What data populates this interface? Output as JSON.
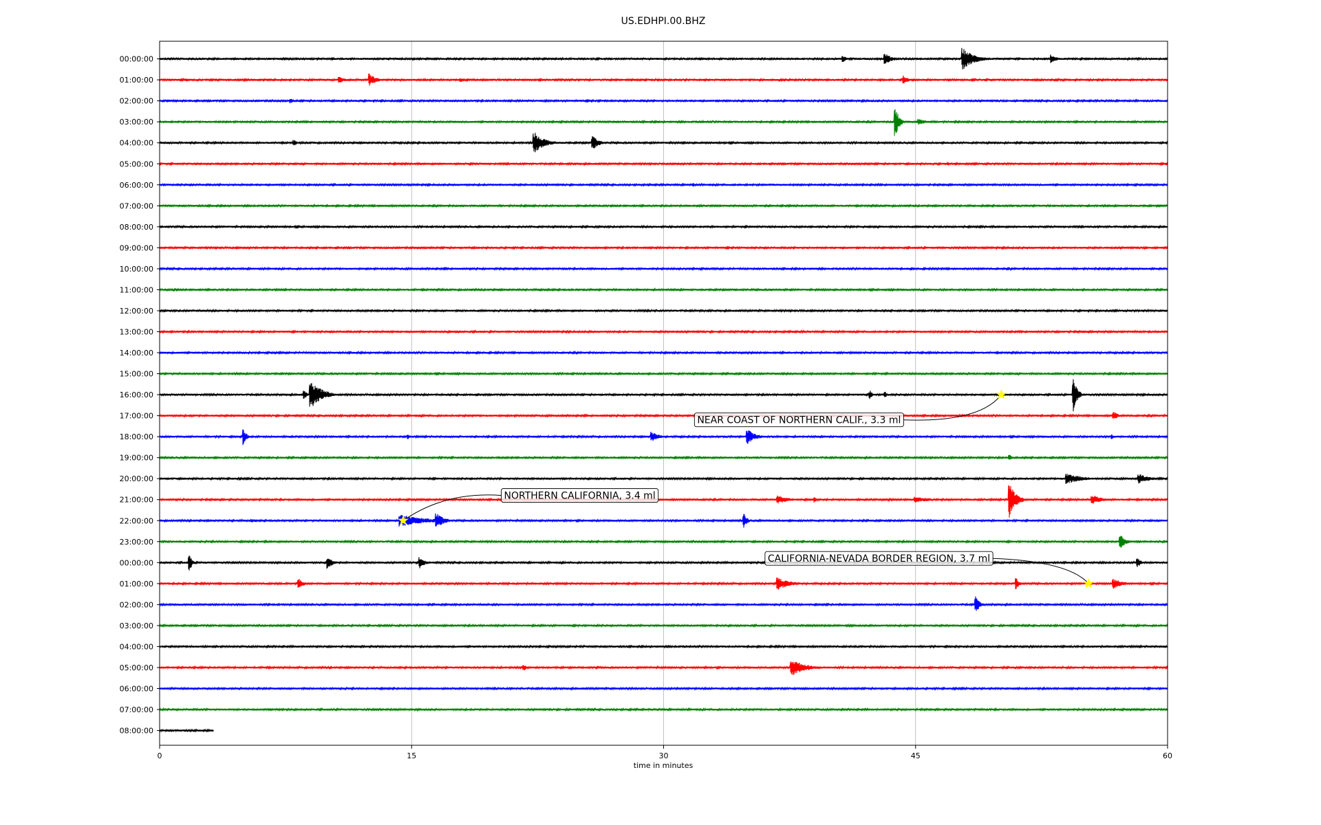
{
  "chart_data": {
    "type": "line",
    "title": "US.EDHPI.00.BHZ",
    "xlabel": "time in minutes",
    "ylabel": "",
    "xlim": [
      0,
      60
    ],
    "x_ticks": [
      "0",
      "15",
      "30",
      "45",
      "60"
    ],
    "x_tick_values": [
      0,
      15,
      30,
      45,
      60
    ],
    "grid": "vertical",
    "row_labels": [
      "00:00:00",
      "01:00:00",
      "02:00:00",
      "03:00:00",
      "04:00:00",
      "05:00:00",
      "06:00:00",
      "07:00:00",
      "08:00:00",
      "09:00:00",
      "10:00:00",
      "11:00:00",
      "12:00:00",
      "13:00:00",
      "14:00:00",
      "15:00:00",
      "16:00:00",
      "17:00:00",
      "18:00:00",
      "19:00:00",
      "20:00:00",
      "21:00:00",
      "22:00:00",
      "23:00:00",
      "00:00:00",
      "01:00:00",
      "02:00:00",
      "03:00:00",
      "04:00:00",
      "05:00:00",
      "06:00:00",
      "07:00:00",
      "08:00:00"
    ],
    "color_cycle": [
      "#000000",
      "#ff0000",
      "#0000ff",
      "#008000"
    ],
    "last_row_end_minutes": 3.2,
    "bursts": [
      {
        "row": 0,
        "minute": 40.7,
        "amp": 0.6,
        "dur": 0.5
      },
      {
        "row": 0,
        "minute": 43.2,
        "amp": 0.9,
        "dur": 0.9
      },
      {
        "row": 0,
        "minute": 47.8,
        "amp": 1.8,
        "dur": 1.5
      },
      {
        "row": 0,
        "minute": 53.1,
        "amp": 0.7,
        "dur": 0.7
      },
      {
        "row": 1,
        "minute": 1.6,
        "amp": 0.3,
        "dur": 0.3
      },
      {
        "row": 1,
        "minute": 10.7,
        "amp": 0.5,
        "dur": 1.0
      },
      {
        "row": 1,
        "minute": 12.5,
        "amp": 1.1,
        "dur": 0.8
      },
      {
        "row": 1,
        "minute": 17.9,
        "amp": 0.4,
        "dur": 0.6
      },
      {
        "row": 1,
        "minute": 44.3,
        "amp": 0.7,
        "dur": 0.6
      },
      {
        "row": 2,
        "minute": 7.8,
        "amp": 0.4,
        "dur": 0.4
      },
      {
        "row": 3,
        "minute": 43.8,
        "amp": 2.5,
        "dur": 0.5
      },
      {
        "row": 3,
        "minute": 45.2,
        "amp": 0.5,
        "dur": 1.0
      },
      {
        "row": 4,
        "minute": 8.0,
        "amp": 0.5,
        "dur": 0.5
      },
      {
        "row": 4,
        "minute": 22.3,
        "amp": 1.8,
        "dur": 1.3
      },
      {
        "row": 4,
        "minute": 25.8,
        "amp": 1.1,
        "dur": 0.8
      },
      {
        "row": 5,
        "minute": 47.0,
        "amp": 0.3,
        "dur": 0.2
      },
      {
        "row": 6,
        "minute": 31.8,
        "amp": 0.3,
        "dur": 0.3
      },
      {
        "row": 16,
        "minute": 8.6,
        "amp": 0.8,
        "dur": 0.4
      },
      {
        "row": 16,
        "minute": 9.0,
        "amp": 2.4,
        "dur": 1.4
      },
      {
        "row": 16,
        "minute": 42.3,
        "amp": 0.7,
        "dur": 0.3
      },
      {
        "row": 16,
        "minute": 43.2,
        "amp": 0.5,
        "dur": 0.3
      },
      {
        "row": 16,
        "minute": 54.4,
        "amp": 2.7,
        "dur": 0.5
      },
      {
        "row": 17,
        "minute": 56.8,
        "amp": 0.7,
        "dur": 0.6
      },
      {
        "row": 18,
        "minute": 5.0,
        "amp": 1.4,
        "dur": 0.4
      },
      {
        "row": 18,
        "minute": 14.8,
        "amp": 0.4,
        "dur": 0.3
      },
      {
        "row": 18,
        "minute": 29.3,
        "amp": 0.8,
        "dur": 1.0
      },
      {
        "row": 18,
        "minute": 35.0,
        "amp": 1.3,
        "dur": 1.0
      },
      {
        "row": 18,
        "minute": 56.7,
        "amp": 0.4,
        "dur": 0.3
      },
      {
        "row": 19,
        "minute": 50.6,
        "amp": 0.5,
        "dur": 0.4
      },
      {
        "row": 20,
        "minute": 54.0,
        "amp": 0.9,
        "dur": 2.0
      },
      {
        "row": 20,
        "minute": 58.3,
        "amp": 0.8,
        "dur": 1.5
      },
      {
        "row": 21,
        "minute": 36.8,
        "amp": 0.7,
        "dur": 1.5
      },
      {
        "row": 21,
        "minute": 39.0,
        "amp": 0.5,
        "dur": 0.3
      },
      {
        "row": 21,
        "minute": 50.6,
        "amp": 3.0,
        "dur": 0.8
      },
      {
        "row": 21,
        "minute": 45.0,
        "amp": 0.5,
        "dur": 2.0
      },
      {
        "row": 21,
        "minute": 55.5,
        "amp": 0.8,
        "dur": 1.3
      },
      {
        "row": 22,
        "minute": 14.3,
        "amp": 1.0,
        "dur": 3.5
      },
      {
        "row": 22,
        "minute": 16.5,
        "amp": 1.2,
        "dur": 1.0
      },
      {
        "row": 22,
        "minute": 34.8,
        "amp": 1.2,
        "dur": 0.4
      },
      {
        "row": 22,
        "minute": 5.5,
        "amp": 0.3,
        "dur": 2.0
      },
      {
        "row": 23,
        "minute": 57.2,
        "amp": 1.1,
        "dur": 0.7
      },
      {
        "row": 24,
        "minute": 1.8,
        "amp": 1.4,
        "dur": 0.3
      },
      {
        "row": 24,
        "minute": 10.0,
        "amp": 1.0,
        "dur": 0.7
      },
      {
        "row": 24,
        "minute": 15.5,
        "amp": 1.0,
        "dur": 0.6
      },
      {
        "row": 24,
        "minute": 58.2,
        "amp": 1.0,
        "dur": 0.4
      },
      {
        "row": 25,
        "minute": 8.3,
        "amp": 0.8,
        "dur": 0.6
      },
      {
        "row": 25,
        "minute": 36.8,
        "amp": 1.0,
        "dur": 1.6
      },
      {
        "row": 25,
        "minute": 51.0,
        "amp": 0.9,
        "dur": 0.4
      },
      {
        "row": 25,
        "minute": 56.8,
        "amp": 0.8,
        "dur": 1.2
      },
      {
        "row": 26,
        "minute": 48.6,
        "amp": 1.4,
        "dur": 0.5
      },
      {
        "row": 29,
        "minute": 21.7,
        "amp": 0.5,
        "dur": 0.5
      },
      {
        "row": 29,
        "minute": 37.6,
        "amp": 1.4,
        "dur": 1.8
      }
    ],
    "annotations": [
      {
        "text": "NEAR COAST OF NORTHERN CALIF., 3.3 ml",
        "row": 16,
        "minute": 50.1,
        "label_row": 17.2,
        "label_minute": 32.0
      },
      {
        "text": "NORTHERN CALIFORNIA, 3.4 ml",
        "row": 22,
        "minute": 14.5,
        "label_row": 20.8,
        "label_minute": 20.5
      },
      {
        "text": "CALIFORNIA-NEVADA BORDER REGION, 3.7 ml",
        "row": 25,
        "minute": 55.3,
        "label_row": 23.8,
        "label_minute": 36.2
      }
    ],
    "marker_color": "#ffff00",
    "legend": "none"
  }
}
